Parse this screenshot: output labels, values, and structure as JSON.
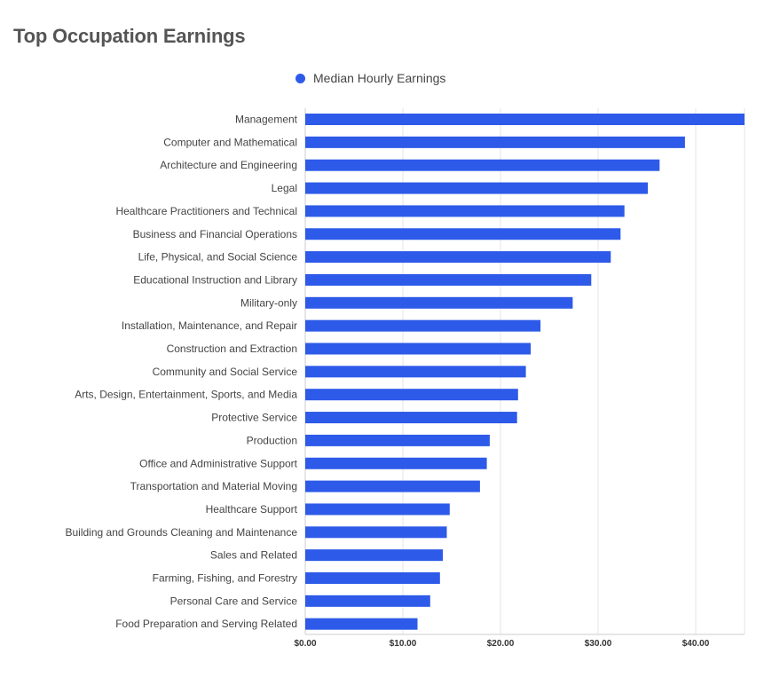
{
  "chart_data": {
    "type": "bar",
    "orientation": "horizontal",
    "title": "Top Occupation Earnings",
    "xlabel": "",
    "ylabel": "",
    "xlim": [
      0,
      45
    ],
    "x_ticks": [
      0,
      10,
      20,
      30,
      40
    ],
    "x_tick_labels": [
      "$0.00",
      "$10.00",
      "$20.00",
      "$30.00",
      "$40.00"
    ],
    "grid": "vertical",
    "legend_position": "top-center",
    "categories": [
      "Management",
      "Computer and Mathematical",
      "Architecture and Engineering",
      "Legal",
      "Healthcare Practitioners and Technical",
      "Business and Financial Operations",
      "Life, Physical, and Social Science",
      "Educational Instruction and Library",
      "Military-only",
      "Installation, Maintenance, and Repair",
      "Construction and Extraction",
      "Community and Social Service",
      "Arts, Design, Entertainment, Sports, and Media",
      "Protective Service",
      "Production",
      "Office and Administrative Support",
      "Transportation and Material Moving",
      "Healthcare Support",
      "Building and Grounds Cleaning and Maintenance",
      "Sales and Related",
      "Farming, Fishing, and Forestry",
      "Personal Care and Service",
      "Food Preparation and Serving Related"
    ],
    "series": [
      {
        "name": "Median Hourly Earnings",
        "color": "#2d5ae8",
        "values": [
          45.0,
          38.9,
          36.3,
          35.1,
          32.7,
          32.3,
          31.3,
          29.3,
          27.4,
          24.1,
          23.1,
          22.6,
          21.8,
          21.7,
          18.9,
          18.6,
          17.9,
          14.8,
          14.5,
          14.1,
          13.8,
          12.8,
          11.5
        ]
      }
    ]
  }
}
